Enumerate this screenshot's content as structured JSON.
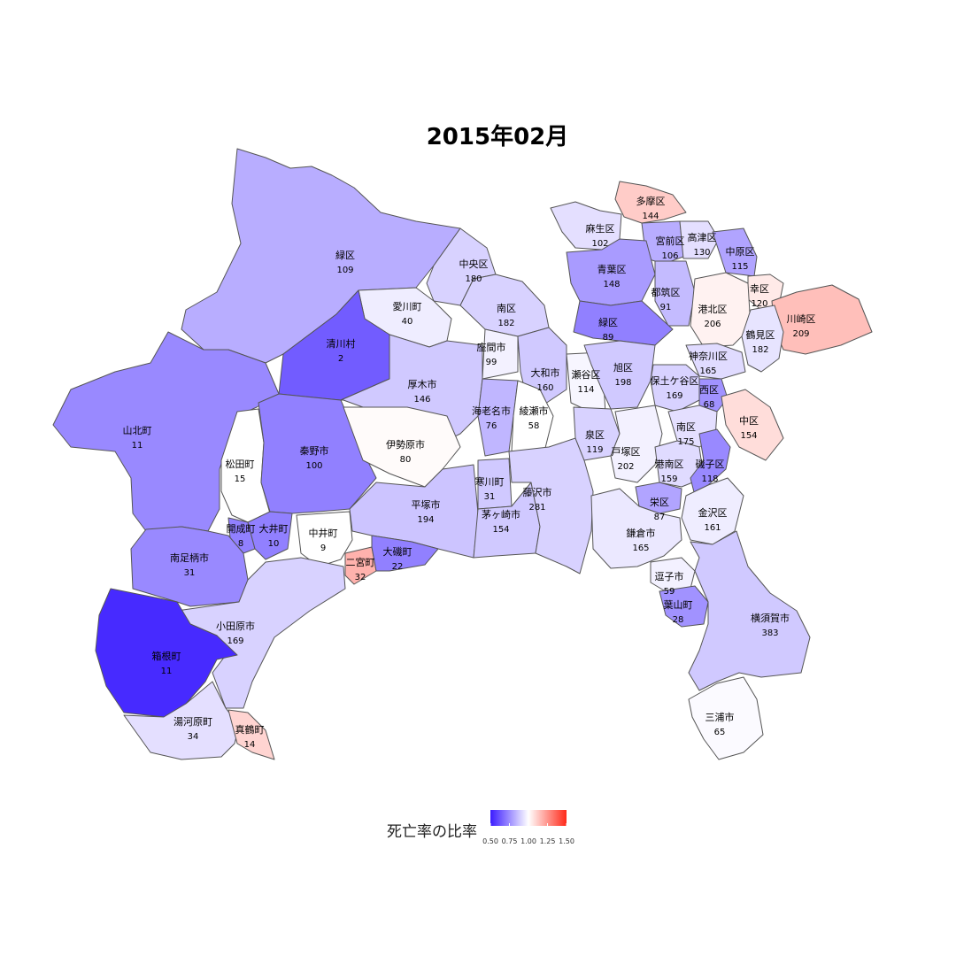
{
  "title": "2015年02月",
  "legend": {
    "title": "死亡率の比率",
    "ticks": [
      "0.50",
      "0.75",
      "1.00",
      "1.25",
      "1.50"
    ],
    "tick_values": [
      0.5,
      0.75,
      1.0,
      1.25,
      1.5
    ],
    "colors": {
      "low": "#3b1cff",
      "mid": "#ffffff",
      "high": "#ff2a1a"
    }
  },
  "regions": [
    {
      "name": "緑区",
      "value": "109",
      "ratio": 0.82
    },
    {
      "name": "中央区",
      "value": "180",
      "ratio": 0.9
    },
    {
      "name": "南区",
      "value": "182",
      "ratio": 0.9
    },
    {
      "name": "愛川町",
      "value": "40",
      "ratio": 0.96
    },
    {
      "name": "清川村",
      "value": "2",
      "ratio": 0.64
    },
    {
      "name": "座間市",
      "value": "99",
      "ratio": 0.97
    },
    {
      "name": "大和市",
      "value": "160",
      "ratio": 0.88
    },
    {
      "name": "瀬谷区",
      "value": "114",
      "ratio": 0.98
    },
    {
      "name": "厚木市",
      "value": "146",
      "ratio": 0.88
    },
    {
      "name": "山北町",
      "value": "11",
      "ratio": 0.74
    },
    {
      "name": "松田町",
      "value": "15",
      "ratio": 1.0
    },
    {
      "name": "秦野市",
      "value": "100",
      "ratio": 0.72
    },
    {
      "name": "伊勢原市",
      "value": "80",
      "ratio": 1.01
    },
    {
      "name": "海老名市",
      "value": "76",
      "ratio": 0.84
    },
    {
      "name": "綾瀬市",
      "value": "58",
      "ratio": 1.0
    },
    {
      "name": "寒川町",
      "value": "31",
      "ratio": 0.88
    },
    {
      "name": "平塚市",
      "value": "194",
      "ratio": 0.87
    },
    {
      "name": "茅ヶ崎市",
      "value": "154",
      "ratio": 0.88
    },
    {
      "name": "藤沢市",
      "value": "281",
      "ratio": 0.9
    },
    {
      "name": "開成町",
      "value": "8",
      "ratio": 0.72
    },
    {
      "name": "大井町",
      "value": "10",
      "ratio": 0.72
    },
    {
      "name": "中井町",
      "value": "9",
      "ratio": 1.0
    },
    {
      "name": "二宮町",
      "value": "32",
      "ratio": 1.18
    },
    {
      "name": "大磯町",
      "value": "22",
      "ratio": 0.72
    },
    {
      "name": "南足柄市",
      "value": "31",
      "ratio": 0.74
    },
    {
      "name": "小田原市",
      "value": "169",
      "ratio": 0.9
    },
    {
      "name": "箱根町",
      "value": "11",
      "ratio": 0.53
    },
    {
      "name": "湯河原町",
      "value": "34",
      "ratio": 0.93
    },
    {
      "name": "真鶴町",
      "value": "14",
      "ratio": 1.1
    },
    {
      "name": "多摩区",
      "value": "144",
      "ratio": 1.12
    },
    {
      "name": "麻生区",
      "value": "102",
      "ratio": 0.93
    },
    {
      "name": "宮前区",
      "value": "106",
      "ratio": 0.82
    },
    {
      "name": "高津区",
      "value": "130",
      "ratio": 0.93
    },
    {
      "name": "中原区",
      "value": "115",
      "ratio": 0.8
    },
    {
      "name": "青葉区",
      "value": "148",
      "ratio": 0.78
    },
    {
      "name": "都筑区",
      "value": "91",
      "ratio": 0.85
    },
    {
      "name": "幸区",
      "value": "120",
      "ratio": 1.05
    },
    {
      "name": "川崎区",
      "value": "209",
      "ratio": 1.15
    },
    {
      "name": "港北区",
      "value": "206",
      "ratio": 1.03
    },
    {
      "name": "緑区",
      "value": "89",
      "ratio": 0.72
    },
    {
      "name": "鶴見区",
      "value": "182",
      "ratio": 0.94
    },
    {
      "name": "神奈川区",
      "value": "165",
      "ratio": 0.92
    },
    {
      "name": "旭区",
      "value": "198",
      "ratio": 0.88
    },
    {
      "name": "保土ケ谷区",
      "value": "169",
      "ratio": 0.9
    },
    {
      "name": "西区",
      "value": "68",
      "ratio": 0.76
    },
    {
      "name": "中区",
      "value": "154",
      "ratio": 1.08
    },
    {
      "name": "泉区",
      "value": "119",
      "ratio": 0.9
    },
    {
      "name": "戸塚区",
      "value": "202",
      "ratio": 0.97
    },
    {
      "name": "南区",
      "value": "175",
      "ratio": 0.93
    },
    {
      "name": "港南区",
      "value": "159",
      "ratio": 0.92
    },
    {
      "name": "磯子区",
      "value": "118",
      "ratio": 0.74
    },
    {
      "name": "栄区",
      "value": "87",
      "ratio": 0.8
    },
    {
      "name": "金沢区",
      "value": "161",
      "ratio": 0.96
    },
    {
      "name": "鎌倉市",
      "value": "165",
      "ratio": 0.95
    },
    {
      "name": "逗子市",
      "value": "59",
      "ratio": 0.97
    },
    {
      "name": "葉山町",
      "value": "28",
      "ratio": 0.76
    },
    {
      "name": "横須賀市",
      "value": "383",
      "ratio": 0.88
    },
    {
      "name": "三浦市",
      "value": "65",
      "ratio": 0.99
    }
  ]
}
